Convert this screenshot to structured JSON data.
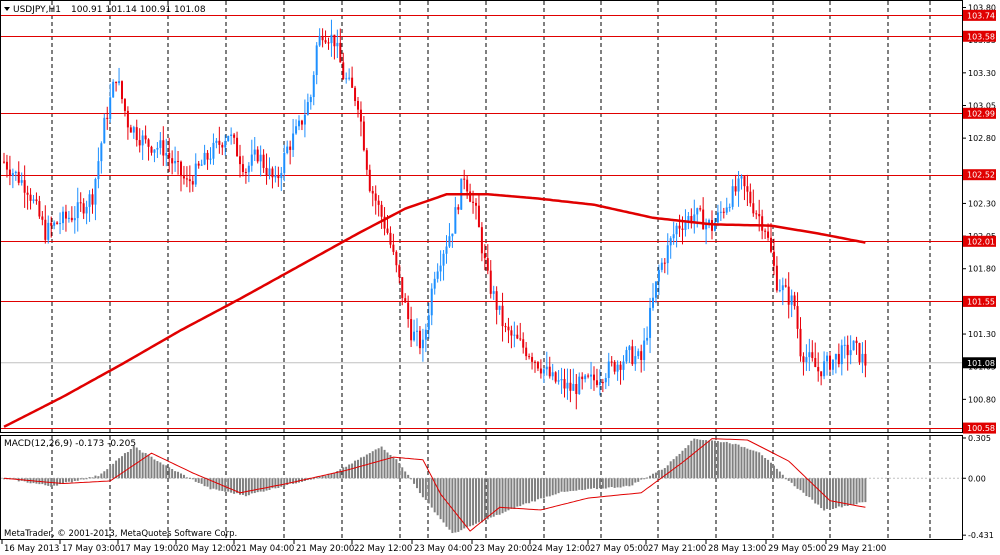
{
  "symbol_header": {
    "symbol": "USDJPY,H1",
    "ohlc": "100.91 101.14 100.91 101.08"
  },
  "colors": {
    "bull": "#1e90ff",
    "bear": "#e8000b",
    "ma": "#e00000",
    "level_line": "#e00000",
    "grid": "#000000",
    "macd_hist": "#808080",
    "macd_signal": "#e00000",
    "current_price_badge": "#000000"
  },
  "indicator": {
    "label": "MACD(12,26,9) -0.173 -0.205"
  },
  "copyright": "MetaTrader, © 2001-2013, MetaQuotes Software Corp.",
  "chart_data": {
    "type": "candlestick",
    "price_axis": {
      "range": [
        100.55,
        103.85
      ],
      "ticks": [
        "103.80",
        "103.55",
        "103.30",
        "103.05",
        "102.80",
        "102.30",
        "102.05",
        "101.80",
        "101.30",
        "101.05",
        "100.80"
      ]
    },
    "levels": [
      "103.74",
      "103.58",
      "102.99",
      "102.52",
      "102.01",
      "101.55",
      "100.58"
    ],
    "current_price": "101.08",
    "x_labels": [
      "16 May 2013",
      "17 May 03:00",
      "17 May 19:00",
      "20 May 12:00",
      "21 May 04:00",
      "21 May 20:00",
      "22 May 12:00",
      "23 May 04:00",
      "23 May 20:00",
      "24 May 12:00",
      "27 May 05:00",
      "27 May 21:00",
      "28 May 13:00",
      "29 May 05:00",
      "29 May 21:00"
    ],
    "price_path": [
      [
        0,
        102.62
      ],
      [
        8,
        102.42
      ],
      [
        14,
        102.08
      ],
      [
        18,
        102.15
      ],
      [
        24,
        102.22
      ],
      [
        30,
        102.36
      ],
      [
        34,
        102.9
      ],
      [
        38,
        103.28
      ],
      [
        42,
        102.92
      ],
      [
        48,
        102.76
      ],
      [
        54,
        102.72
      ],
      [
        62,
        102.45
      ],
      [
        70,
        102.68
      ],
      [
        76,
        102.84
      ],
      [
        82,
        102.56
      ],
      [
        86,
        102.68
      ],
      [
        92,
        102.45
      ],
      [
        96,
        102.72
      ],
      [
        100,
        102.88
      ],
      [
        104,
        103.12
      ],
      [
        106,
        103.5
      ],
      [
        108,
        103.62
      ],
      [
        112,
        103.55
      ],
      [
        115,
        103.28
      ],
      [
        120,
        103.08
      ],
      [
        124,
        102.45
      ],
      [
        130,
        102.08
      ],
      [
        138,
        101.32
      ],
      [
        142,
        101.2
      ],
      [
        146,
        101.78
      ],
      [
        152,
        102.12
      ],
      [
        156,
        102.52
      ],
      [
        160,
        102.22
      ],
      [
        164,
        101.72
      ],
      [
        170,
        101.32
      ],
      [
        178,
        101.16
      ],
      [
        186,
        100.95
      ],
      [
        192,
        100.88
      ],
      [
        200,
        100.95
      ],
      [
        206,
        101.05
      ],
      [
        212,
        101.14
      ],
      [
        216,
        101.1
      ],
      [
        222,
        101.78
      ],
      [
        228,
        102.12
      ],
      [
        234,
        102.22
      ],
      [
        240,
        102.12
      ],
      [
        246,
        102.34
      ],
      [
        250,
        102.45
      ],
      [
        254,
        102.28
      ],
      [
        258,
        102.12
      ],
      [
        262,
        101.7
      ],
      [
        268,
        101.52
      ],
      [
        270,
        101.18
      ],
      [
        276,
        101.02
      ],
      [
        282,
        101.12
      ],
      [
        288,
        101.2
      ],
      [
        292,
        101.08
      ]
    ],
    "ma_points": [
      [
        0,
        100.59
      ],
      [
        20,
        100.82
      ],
      [
        40,
        101.07
      ],
      [
        60,
        101.33
      ],
      [
        80,
        101.57
      ],
      [
        100,
        101.82
      ],
      [
        120,
        102.07
      ],
      [
        136,
        102.26
      ],
      [
        150,
        102.37
      ],
      [
        164,
        102.37
      ],
      [
        180,
        102.34
      ],
      [
        200,
        102.29
      ],
      [
        220,
        102.19
      ],
      [
        240,
        102.14
      ],
      [
        260,
        102.13
      ],
      [
        276,
        102.07
      ],
      [
        292,
        102.0
      ]
    ],
    "macd_axis": {
      "range": [
        -0.46,
        0.32
      ],
      "ticks": [
        "0.305",
        "0.00",
        "-0.431"
      ]
    },
    "macd_envelope": [
      [
        0,
        0.0
      ],
      [
        16,
        -0.06
      ],
      [
        32,
        0.02
      ],
      [
        44,
        0.24
      ],
      [
        56,
        0.08
      ],
      [
        70,
        -0.08
      ],
      [
        82,
        -0.13
      ],
      [
        98,
        -0.04
      ],
      [
        112,
        0.04
      ],
      [
        128,
        0.24
      ],
      [
        134,
        0.12
      ],
      [
        142,
        -0.14
      ],
      [
        152,
        -0.42
      ],
      [
        164,
        -0.31
      ],
      [
        176,
        -0.2
      ],
      [
        188,
        -0.11
      ],
      [
        200,
        -0.08
      ],
      [
        212,
        -0.06
      ],
      [
        224,
        0.08
      ],
      [
        234,
        0.3
      ],
      [
        246,
        0.27
      ],
      [
        256,
        0.2
      ],
      [
        266,
        -0.02
      ],
      [
        278,
        -0.24
      ],
      [
        292,
        -0.18
      ]
    ],
    "macd_signal": [
      [
        0,
        0.0
      ],
      [
        20,
        -0.04
      ],
      [
        36,
        -0.02
      ],
      [
        50,
        0.19
      ],
      [
        64,
        0.04
      ],
      [
        80,
        -0.11
      ],
      [
        96,
        -0.04
      ],
      [
        116,
        0.06
      ],
      [
        132,
        0.16
      ],
      [
        142,
        0.14
      ],
      [
        148,
        -0.12
      ],
      [
        158,
        -0.4
      ],
      [
        168,
        -0.22
      ],
      [
        182,
        -0.24
      ],
      [
        198,
        -0.15
      ],
      [
        216,
        -0.11
      ],
      [
        230,
        0.12
      ],
      [
        240,
        0.3
      ],
      [
        252,
        0.29
      ],
      [
        266,
        0.13
      ],
      [
        280,
        -0.17
      ],
      [
        292,
        -0.22
      ]
    ]
  }
}
